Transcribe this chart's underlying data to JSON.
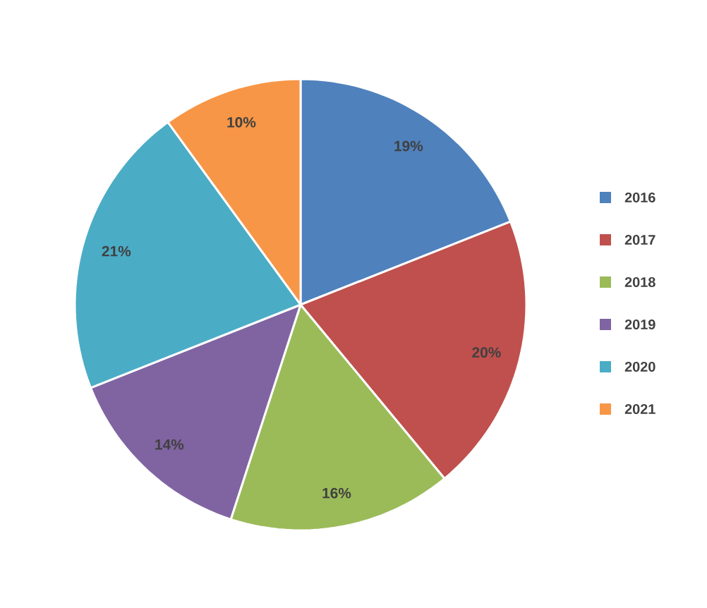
{
  "chart_data": {
    "type": "pie",
    "categories": [
      "2016",
      "2017",
      "2018",
      "2019",
      "2020",
      "2021"
    ],
    "values": [
      19,
      20,
      16,
      14,
      21,
      10
    ],
    "value_labels": [
      "19%",
      "20%",
      "16%",
      "14%",
      "21%",
      "10%"
    ],
    "colors": [
      "#4f81bd",
      "#c0504d",
      "#9bbb59",
      "#8064a2",
      "#4bacc6",
      "#f79646"
    ],
    "legend": "right"
  }
}
